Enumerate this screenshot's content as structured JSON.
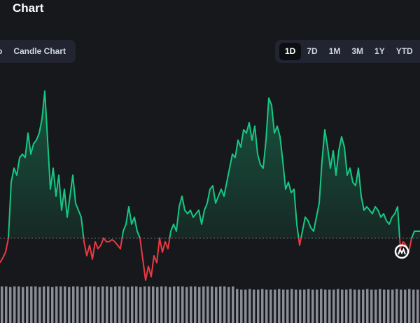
{
  "header": {
    "title": "Chart"
  },
  "tabs": {
    "items": [
      "p",
      "Candle Chart"
    ]
  },
  "ranges": {
    "items": [
      "1D",
      "7D",
      "1M",
      "3M",
      "1Y",
      "YTD"
    ],
    "active": 0
  },
  "chart_data": {
    "type": "line",
    "up_color": "#16c784",
    "down_color": "#ea3943",
    "ylim": [
      0,
      280
    ],
    "baseline": 60,
    "values": [
      25,
      32,
      40,
      60,
      140,
      160,
      150,
      175,
      180,
      175,
      210,
      180,
      195,
      200,
      210,
      230,
      270,
      200,
      130,
      160,
      120,
      150,
      100,
      130,
      90,
      120,
      150,
      110,
      100,
      90,
      55,
      35,
      50,
      30,
      55,
      45,
      50,
      60,
      55,
      55,
      58,
      55,
      50,
      45,
      70,
      80,
      105,
      80,
      90,
      70,
      60,
      30,
      0,
      20,
      5,
      35,
      25,
      60,
      40,
      55,
      45,
      70,
      80,
      70,
      105,
      120,
      100,
      95,
      100,
      90,
      95,
      100,
      80,
      100,
      110,
      130,
      135,
      110,
      120,
      130,
      120,
      140,
      160,
      180,
      175,
      200,
      190,
      215,
      210,
      225,
      200,
      220,
      180,
      165,
      160,
      200,
      260,
      250,
      210,
      220,
      205,
      170,
      130,
      140,
      125,
      130,
      80,
      50,
      70,
      90,
      85,
      75,
      70,
      90,
      110,
      170,
      215,
      190,
      160,
      185,
      150,
      185,
      205,
      190,
      150,
      160,
      140,
      135,
      160,
      120,
      100,
      105,
      100,
      95,
      105,
      100,
      90,
      95,
      85,
      80,
      90,
      95,
      105,
      45,
      55,
      50,
      40,
      60,
      70,
      70,
      70
    ],
    "volume": {
      "ylim": [
        0,
        60
      ],
      "values": [
        56,
        56,
        55,
        56,
        56,
        55,
        56,
        56,
        56,
        55,
        56,
        56,
        55,
        56,
        56,
        56,
        55,
        56,
        56,
        55,
        56,
        56,
        56,
        55,
        56,
        56,
        55,
        56,
        56,
        56,
        55,
        56,
        56,
        55,
        56,
        56,
        56,
        55,
        56,
        56,
        55,
        56,
        56,
        56,
        55,
        56,
        56,
        55,
        56,
        56,
        56,
        55,
        56,
        56,
        55,
        56,
        52,
        51,
        51,
        52,
        51,
        51,
        52,
        51,
        51,
        51,
        52,
        51,
        51,
        52,
        51,
        51,
        51,
        52,
        51,
        51,
        52,
        51,
        51,
        51,
        52,
        51,
        51,
        52,
        51,
        51,
        51,
        52,
        51,
        51,
        52,
        51,
        51,
        51,
        52,
        51,
        51,
        52,
        51,
        51
      ]
    }
  }
}
